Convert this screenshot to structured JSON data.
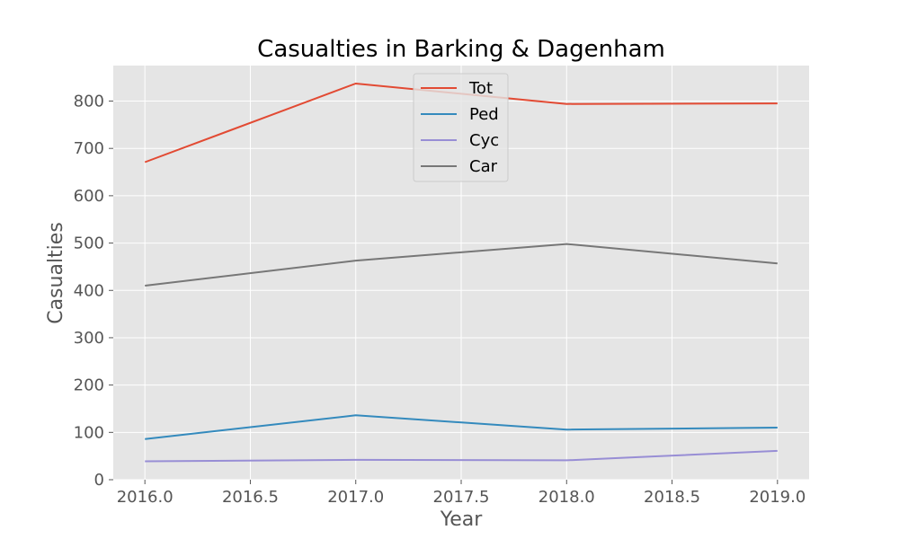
{
  "chart_data": {
    "type": "line",
    "title": "Casualties in Barking & Dagenham",
    "xlabel": "Year",
    "ylabel": "Casualties",
    "xlim": [
      2015.85,
      2019.15
    ],
    "ylim": [
      0,
      875
    ],
    "xticks": [
      "2016.0",
      "2016.5",
      "2017.0",
      "2017.5",
      "2018.0",
      "2018.5",
      "2019.0"
    ],
    "yticks": [
      "0",
      "100",
      "200",
      "300",
      "400",
      "500",
      "600",
      "700",
      "800"
    ],
    "x": [
      2016,
      2017,
      2018,
      2019
    ],
    "grid": true,
    "legend_position": "top-center",
    "series": [
      {
        "name": "Tot",
        "color": "#E24A33",
        "values": [
          671,
          837,
          794,
          795
        ]
      },
      {
        "name": "Ped",
        "color": "#348ABD",
        "values": [
          86,
          136,
          106,
          110
        ]
      },
      {
        "name": "Cyc",
        "color": "#988ED5",
        "values": [
          39,
          42,
          41,
          61
        ]
      },
      {
        "name": "Car",
        "color": "#777777",
        "values": [
          410,
          463,
          498,
          457
        ]
      }
    ]
  }
}
